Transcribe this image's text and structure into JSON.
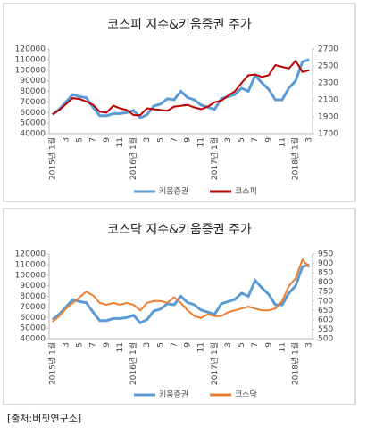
{
  "charts": [
    {
      "chart_data": {
        "type": "line",
        "title": "코스피 지수&키움증권 주가",
        "categories": [
          "2015년 1월",
          null,
          "3",
          null,
          "5",
          null,
          "7",
          null,
          "9",
          null,
          "11",
          null,
          "2016년 1월",
          null,
          "3",
          null,
          "5",
          null,
          "7",
          null,
          "9",
          null,
          "11",
          null,
          "2017년 1월",
          null,
          "3",
          null,
          "5",
          null,
          "7",
          null,
          "9",
          null,
          "11",
          null,
          "2018년 1월",
          null,
          "3"
        ],
        "series": [
          {
            "name": "키움증권",
            "color": "#5b9bd5",
            "values": [
              58000,
              63000,
              70000,
              77000,
              75000,
              74000,
              65000,
              57000,
              57000,
              59000,
              59000,
              60000,
              62000,
              55000,
              58000,
              66000,
              68000,
              73000,
              72000,
              80000,
              74000,
              72000,
              67000,
              65000,
              63000,
              73000,
              75000,
              77000,
              83000,
              80000,
              95000,
              88000,
              82000,
              72000,
              72000,
              83000,
              90000,
              108000,
              110000
            ]
          },
          {
            "name": "코스피",
            "color": "#c00000",
            "axis": "y2",
            "values": [
              1930,
              1980,
              2050,
              2120,
              2110,
              2080,
              2040,
              1960,
              1950,
              2030,
              2000,
              1980,
              1920,
              1920,
              2000,
              1990,
              1980,
              1970,
              2020,
              2030,
              2040,
              2010,
              1990,
              2020,
              2070,
              2090,
              2150,
              2200,
              2300,
              2390,
              2400,
              2370,
              2390,
              2510,
              2490,
              2470,
              2560,
              2430,
              2450
            ]
          }
        ],
        "ylim": [
          40000,
          120000
        ],
        "yticks": [
          40000,
          50000,
          60000,
          70000,
          80000,
          90000,
          100000,
          110000,
          120000
        ],
        "y2lim": [
          1700,
          2700
        ],
        "y2ticks": [
          1700,
          1900,
          2100,
          2300,
          2500,
          2700
        ],
        "legend": "bottom"
      }
    },
    {
      "chart_data": {
        "type": "line",
        "title": "코스닥 지수&키움증권 주가",
        "categories": [
          "2015년 1월",
          null,
          "3",
          null,
          "5",
          null,
          "7",
          null,
          "9",
          null,
          "11",
          null,
          "2016년 1월",
          null,
          "3",
          null,
          "5",
          null,
          "7",
          null,
          "9",
          null,
          "11",
          null,
          "2017년 1월",
          null,
          "3",
          null,
          "5",
          null,
          "7",
          null,
          "9",
          null,
          "11",
          null,
          "2018년 1월",
          null,
          "3"
        ],
        "series": [
          {
            "name": "키움증권",
            "color": "#5b9bd5",
            "values": [
              58000,
              63000,
              70000,
              77000,
              75000,
              74000,
              65000,
              57000,
              57000,
              59000,
              59000,
              60000,
              62000,
              55000,
              58000,
              66000,
              68000,
              73000,
              72000,
              80000,
              74000,
              72000,
              67000,
              65000,
              63000,
              73000,
              75000,
              77000,
              83000,
              80000,
              95000,
              88000,
              82000,
              72000,
              72000,
              83000,
              90000,
              108000,
              110000
            ]
          },
          {
            "name": "코스닥",
            "color": "#ed7d31",
            "axis": "y2",
            "values": [
              590,
              620,
              660,
              690,
              720,
              750,
              730,
              690,
              680,
              690,
              680,
              690,
              680,
              650,
              690,
              700,
              700,
              690,
              720,
              690,
              650,
              620,
              610,
              630,
              620,
              620,
              640,
              650,
              660,
              670,
              660,
              650,
              650,
              660,
              700,
              780,
              820,
              920,
              880
            ]
          }
        ],
        "ylim": [
          40000,
          120000
        ],
        "yticks": [
          40000,
          50000,
          60000,
          70000,
          80000,
          90000,
          100000,
          110000,
          120000
        ],
        "y2lim": [
          500,
          950
        ],
        "y2ticks": [
          500,
          550,
          600,
          650,
          700,
          750,
          800,
          850,
          900,
          950
        ],
        "legend": "bottom"
      }
    }
  ],
  "source": "[출처:버핏연구소]"
}
